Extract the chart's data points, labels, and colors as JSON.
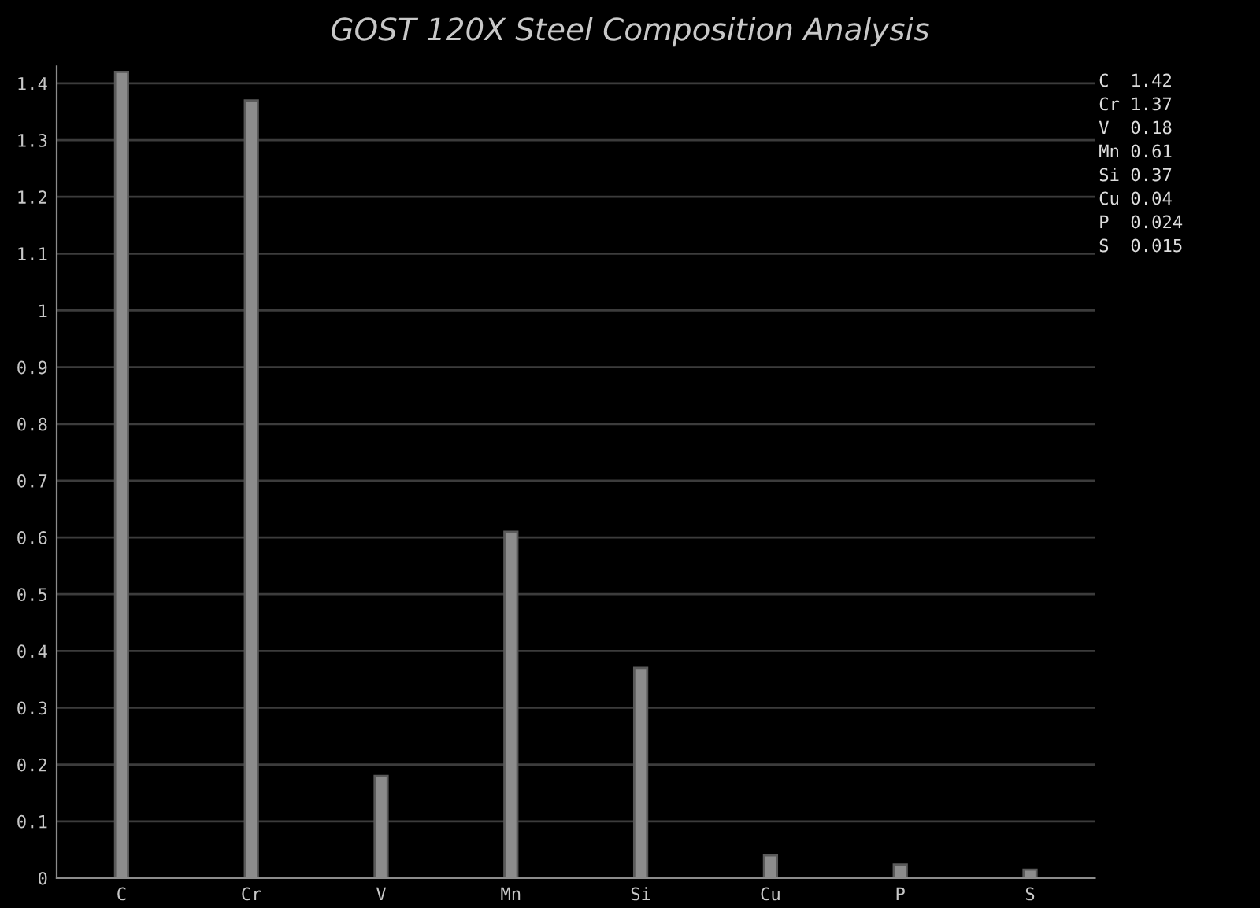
{
  "chart_data": {
    "type": "bar",
    "title": "GOST 120X Steel Composition Analysis",
    "categories": [
      "C",
      "Cr",
      "V",
      "Mn",
      "Si",
      "Cu",
      "P",
      "S"
    ],
    "values": [
      1.42,
      1.37,
      0.18,
      0.61,
      0.37,
      0.04,
      0.024,
      0.015
    ],
    "color": "#8c8c8c",
    "ylim": [
      0,
      1.43
    ],
    "yticks": [
      0,
      0.1,
      0.2,
      0.3,
      0.4,
      0.5,
      0.6,
      0.7,
      0.8,
      0.9,
      1,
      1.1,
      1.2,
      1.3,
      1.4
    ],
    "grid": "y",
    "annotations": [
      "C  1.42",
      "Cr 1.37",
      "V  0.18",
      "Mn 0.61",
      "Si 0.37",
      "Cu 0.04",
      "P  0.024",
      "S  0.015"
    ]
  }
}
